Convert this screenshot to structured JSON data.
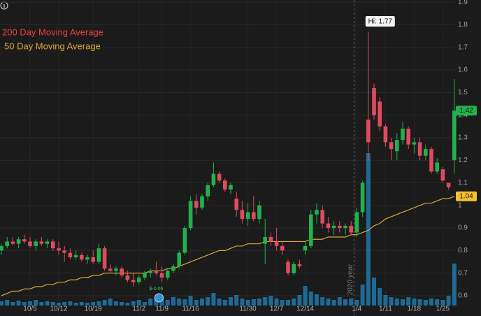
{
  "chart_data": {
    "type": "candlestick",
    "categories": [
      null,
      null,
      null,
      null,
      null,
      "10/5",
      null,
      null,
      null,
      null,
      "10/12",
      null,
      null,
      null,
      null,
      null,
      "10/19",
      null,
      null,
      null,
      null,
      null,
      null,
      null,
      "11/2",
      null,
      null,
      null,
      "11/9",
      null,
      null,
      null,
      null,
      "11/16",
      null,
      null,
      null,
      null,
      null,
      null,
      null,
      null,
      null,
      "11/30",
      null,
      null,
      null,
      null,
      "12/7",
      null,
      null,
      null,
      null,
      "12/14",
      null,
      null,
      null,
      null,
      null,
      null,
      null,
      null,
      "1/4",
      null,
      null,
      null,
      null,
      "1/11",
      null,
      null,
      null,
      null,
      "1/18",
      null,
      null,
      null,
      null,
      "1/25",
      null,
      null
    ],
    "open": [
      0.8,
      0.82,
      0.84,
      0.83,
      0.85,
      0.84,
      0.82,
      0.84,
      0.83,
      0.84,
      0.81,
      0.8,
      0.79,
      0.77,
      0.78,
      0.76,
      0.77,
      0.75,
      0.81,
      0.72,
      0.71,
      0.72,
      0.69,
      0.67,
      0.66,
      0.68,
      0.7,
      0.71,
      0.7,
      0.68,
      0.71,
      0.73,
      0.79,
      0.9,
      1.02,
      0.99,
      1.04,
      1.09,
      1.14,
      1.11,
      1.07,
      1.03,
      0.98,
      0.94,
      0.97,
      0.94,
      0.83,
      0.86,
      0.84,
      0.82,
      0.75,
      0.7,
      0.74,
      0.8,
      0.82,
      0.96,
      0.98,
      0.92,
      0.9,
      0.91,
      0.9,
      0.91,
      0.88,
      0.97,
      1.38,
      1.52,
      1.46,
      1.35,
      1.28,
      1.24,
      1.29,
      1.34,
      1.27,
      1.28,
      1.22,
      1.25,
      1.15,
      1.16,
      1.1,
      1.2
    ],
    "high": [
      0.83,
      0.86,
      0.86,
      0.86,
      0.87,
      0.86,
      0.85,
      0.86,
      0.85,
      0.85,
      0.84,
      0.82,
      0.81,
      0.8,
      0.79,
      0.78,
      0.8,
      0.83,
      0.82,
      0.74,
      0.73,
      0.73,
      0.71,
      0.7,
      0.69,
      0.71,
      0.72,
      0.75,
      0.73,
      0.72,
      0.74,
      0.8,
      0.91,
      1.04,
      1.05,
      1.05,
      1.1,
      1.19,
      1.15,
      1.12,
      1.1,
      1.06,
      1.02,
      1.01,
      1.04,
      1.02,
      0.94,
      0.88,
      0.9,
      0.84,
      0.76,
      0.75,
      0.76,
      0.84,
      0.98,
      1.01,
      1.0,
      0.95,
      0.93,
      0.93,
      0.92,
      0.93,
      0.99,
      1.11,
      1.77,
      1.54,
      1.48,
      1.36,
      1.3,
      1.32,
      1.37,
      1.35,
      1.3,
      1.3,
      1.27,
      1.26,
      1.21,
      1.17,
      1.1,
      1.56
    ],
    "low": [
      0.78,
      0.81,
      0.82,
      0.81,
      0.83,
      0.81,
      0.8,
      0.82,
      0.81,
      0.8,
      0.78,
      0.75,
      0.76,
      0.76,
      0.75,
      0.74,
      0.74,
      0.74,
      0.71,
      0.7,
      0.69,
      0.68,
      0.66,
      0.64,
      0.65,
      0.67,
      0.68,
      0.69,
      0.66,
      0.67,
      0.7,
      0.72,
      0.78,
      0.89,
      0.96,
      0.98,
      1.02,
      1.08,
      1.1,
      1.06,
      1.05,
      0.95,
      0.92,
      0.91,
      0.93,
      0.92,
      0.74,
      0.82,
      0.8,
      0.78,
      0.69,
      0.69,
      0.72,
      0.78,
      0.81,
      0.92,
      0.9,
      0.88,
      0.87,
      0.88,
      0.87,
      0.87,
      0.86,
      0.95,
      1.2,
      1.38,
      1.33,
      1.26,
      1.2,
      1.2,
      1.27,
      1.25,
      1.23,
      1.2,
      1.2,
      1.14,
      1.14,
      1.1,
      1.07,
      1.14
    ],
    "close": [
      0.82,
      0.84,
      0.83,
      0.85,
      0.84,
      0.82,
      0.84,
      0.83,
      0.84,
      0.81,
      0.8,
      0.79,
      0.77,
      0.78,
      0.76,
      0.77,
      0.75,
      0.81,
      0.72,
      0.71,
      0.72,
      0.69,
      0.67,
      0.66,
      0.68,
      0.7,
      0.71,
      0.7,
      0.68,
      0.71,
      0.73,
      0.79,
      0.9,
      1.02,
      0.99,
      1.04,
      1.09,
      1.14,
      1.11,
      1.07,
      1.09,
      0.98,
      0.94,
      0.97,
      0.94,
      1.0,
      0.86,
      0.84,
      0.82,
      0.8,
      0.7,
      0.74,
      0.73,
      0.82,
      0.96,
      0.98,
      0.92,
      0.9,
      0.91,
      0.9,
      0.91,
      0.88,
      0.97,
      1.1,
      1.28,
      1.4,
      1.35,
      1.28,
      1.25,
      1.29,
      1.34,
      1.27,
      1.28,
      1.22,
      1.25,
      1.15,
      1.19,
      1.11,
      1.08,
      1.42
    ],
    "volume": [
      6,
      8,
      5,
      7,
      5,
      6,
      8,
      5,
      6,
      5,
      4,
      5,
      6,
      4,
      5,
      4,
      5,
      6,
      8,
      10,
      6,
      5,
      4,
      6,
      8,
      5,
      10,
      12,
      14,
      8,
      12,
      10,
      9,
      14,
      8,
      10,
      12,
      18,
      10,
      8,
      12,
      15,
      10,
      8,
      9,
      10,
      12,
      14,
      10,
      8,
      8,
      10,
      15,
      28,
      20,
      16,
      12,
      10,
      8,
      12,
      9,
      10,
      8,
      30,
      218,
      40,
      25,
      15,
      12,
      10,
      9,
      12,
      10,
      9,
      8,
      10,
      9,
      8,
      14,
      60
    ],
    "volume_lim": [
      0,
      250
    ],
    "volume_color": "#1f6a94",
    "up_color": "#22b14c",
    "down_color": "#e04a5e",
    "series": [
      {
        "name": "200 Day Moving Average",
        "color": "#e8413c"
      },
      {
        "name": "50 Day Moving Average",
        "color": "#d9a83a",
        "values": [
          0.6,
          0.61,
          0.62,
          0.62,
          0.63,
          0.63,
          0.64,
          0.64,
          0.65,
          0.65,
          0.66,
          0.66,
          0.67,
          0.67,
          0.68,
          0.68,
          0.69,
          0.69,
          0.7,
          0.7,
          0.7,
          0.7,
          0.7,
          0.7,
          0.7,
          0.7,
          0.71,
          0.71,
          0.71,
          0.72,
          0.72,
          0.73,
          0.74,
          0.75,
          0.76,
          0.77,
          0.78,
          0.79,
          0.8,
          0.8,
          0.81,
          0.82,
          0.82,
          0.83,
          0.83,
          0.83,
          0.84,
          0.84,
          0.84,
          0.84,
          0.84,
          0.84,
          0.84,
          0.84,
          0.85,
          0.85,
          0.85,
          0.86,
          0.86,
          0.86,
          0.86,
          0.87,
          0.87,
          0.88,
          0.89,
          0.91,
          0.92,
          0.94,
          0.95,
          0.96,
          0.97,
          0.98,
          0.99,
          1.0,
          1.01,
          1.01,
          1.02,
          1.03,
          1.03,
          1.04
        ]
      }
    ],
    "ylim": [
      0.51,
      1.91
    ],
    "yticks": [
      0.6,
      0.7,
      0.8,
      0.9,
      1,
      1.1,
      1.2,
      1.3,
      1.4,
      1.5,
      1.6,
      1.7,
      1.8,
      1.9
    ],
    "grid": true,
    "annotations": [
      {
        "text": "Hi: 1.77"
      },
      {
        "text": "2020 year"
      },
      {
        "text": "$-0.06"
      }
    ]
  }
}
